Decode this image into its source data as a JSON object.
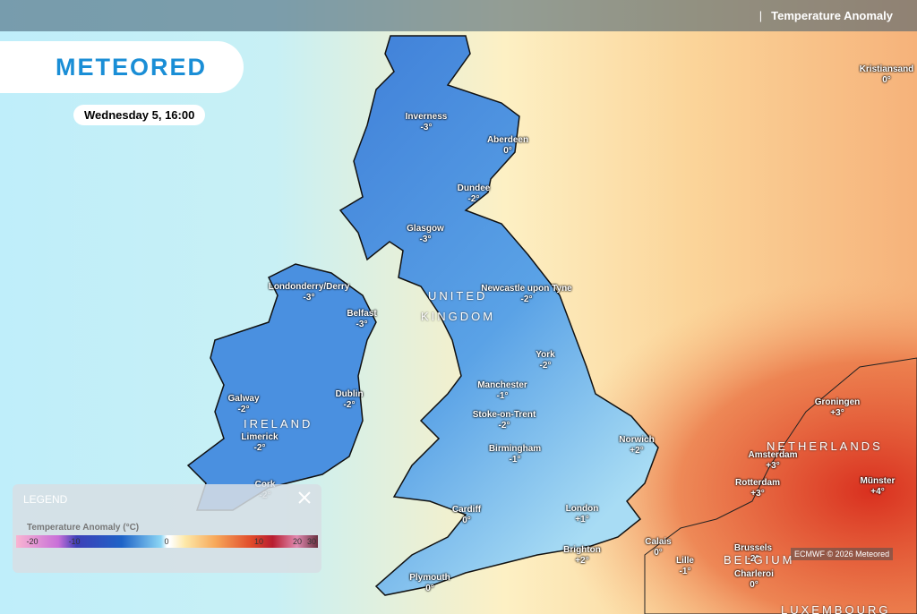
{
  "header": {
    "logo": "METEORED",
    "layer": "Temperature Anomaly",
    "datetime": "Wednesday 5, 16:00"
  },
  "cities": [
    {
      "name": "Inverness",
      "value": "-3°"
    },
    {
      "name": "Aberdeen",
      "value": "0°"
    },
    {
      "name": "Dundee",
      "value": "-2°"
    },
    {
      "name": "Glasgow",
      "value": "-3°"
    },
    {
      "name": "Londonderry/Derry",
      "value": "-3°"
    },
    {
      "name": "Belfast",
      "value": "-3°"
    },
    {
      "name": "Newcastle upon Tyne",
      "value": "-2°"
    },
    {
      "name": "York",
      "value": "-2°"
    },
    {
      "name": "Manchester",
      "value": "-1°"
    },
    {
      "name": "Dublin",
      "value": "-2°"
    },
    {
      "name": "Galway",
      "value": "-2°"
    },
    {
      "name": "Stoke-on-Trent",
      "value": "-2°"
    },
    {
      "name": "Limerick",
      "value": "-2°"
    },
    {
      "name": "Birmingham",
      "value": "-1°"
    },
    {
      "name": "Norwich",
      "value": "+2°"
    },
    {
      "name": "Groningen",
      "value": "+3°"
    },
    {
      "name": "Amsterdam",
      "value": "+3°"
    },
    {
      "name": "Rotterdam",
      "value": "+3°"
    },
    {
      "name": "Münster",
      "value": "+4°"
    },
    {
      "name": "Cork",
      "value": "-2°"
    },
    {
      "name": "Cardiff",
      "value": "0°"
    },
    {
      "name": "London",
      "value": "+1°"
    },
    {
      "name": "Brighton",
      "value": "+2°"
    },
    {
      "name": "Calais",
      "value": "0°"
    },
    {
      "name": "Lille",
      "value": "-1°"
    },
    {
      "name": "Brussels",
      "value": "-2°"
    },
    {
      "name": "Charleroi",
      "value": "0°"
    },
    {
      "name": "Plymouth",
      "value": "0°"
    },
    {
      "name": "Kristiansand",
      "value": "0°"
    }
  ],
  "regions": [
    "UNITED",
    "KINGDOM",
    "IRELAND",
    "NETHERLANDS",
    "BELGIUM",
    "LUXEMBOURG"
  ],
  "legend": {
    "title": "LEGEND",
    "scale_title": "Temperature Anomaly (°C)",
    "ticks": [
      -20,
      -10,
      0,
      10,
      20,
      30
    ]
  },
  "attribution": "ECMWF © 2026 Meteored"
}
